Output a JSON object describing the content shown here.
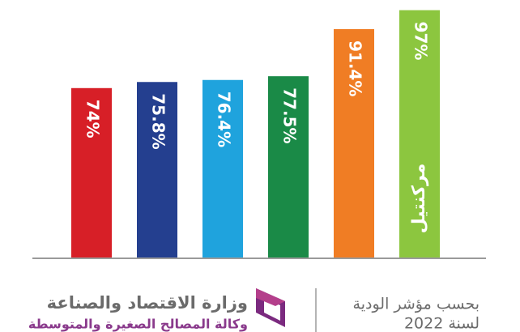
{
  "chart_data": {
    "type": "bar",
    "categories": [
      null,
      null,
      null,
      null,
      null,
      null
    ],
    "values": [
      74,
      75.8,
      76.4,
      77.5,
      91.4,
      97
    ],
    "value_labels": [
      "74%",
      "75.8%",
      "76.4%",
      "77.5%",
      "91.4%",
      "97%"
    ],
    "colors": [
      "#d71f27",
      "#243f8f",
      "#1fa3dd",
      "#1a8a47",
      "#f07d24",
      "#8cc63f"
    ],
    "ylim": [
      24,
      100
    ],
    "annotation": "مركنتيل"
  },
  "footer": {
    "ministry": "وزارة الاقتصاد والصناعة",
    "agency": "وكالة المصالح الصغيرة والمتوسطة",
    "index_line": "بحسب مؤشر الودية",
    "year_line": "لسنة 2022"
  }
}
